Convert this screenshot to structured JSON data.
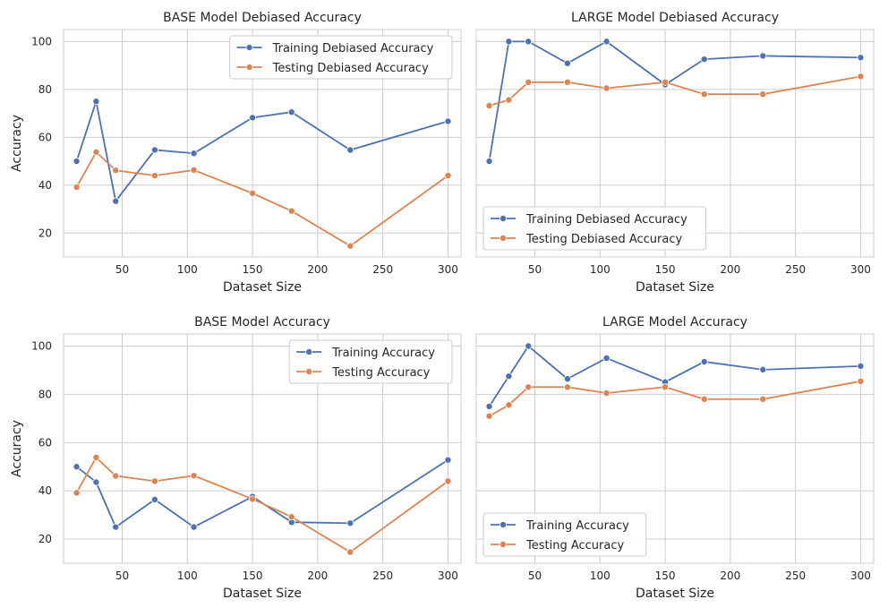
{
  "colors": {
    "training": "#4c72b0",
    "testing": "#dd8452",
    "grid": "#cccccc",
    "spine": "#cccccc",
    "text": "#262626"
  },
  "chart_data": [
    {
      "type": "line",
      "title": "BASE Model Debiased Accuracy",
      "xlabel": "Dataset Size",
      "ylabel": "Accuracy",
      "x": [
        15,
        30,
        45,
        75,
        105,
        150,
        180,
        225,
        300
      ],
      "series": [
        {
          "name": "Training Debiased Accuracy",
          "color": "#4c72b0",
          "values": [
            50,
            75,
            33.3,
            54.7,
            53.3,
            68.2,
            70.5,
            54.7,
            66.7
          ]
        },
        {
          "name": "Testing Debiased Accuracy",
          "color": "#dd8452",
          "values": [
            39.2,
            53.8,
            46.2,
            44.0,
            46.3,
            36.6,
            29.2,
            14.6,
            44.0
          ]
        }
      ],
      "xlim": [
        5,
        310
      ],
      "ylim": [
        10,
        105
      ],
      "xticks": [
        50,
        100,
        150,
        200,
        250,
        300
      ],
      "yticks": [
        20,
        40,
        60,
        80,
        100
      ],
      "legend": "top-right",
      "grid": true
    },
    {
      "type": "line",
      "title": "LARGE Model Debiased Accuracy",
      "xlabel": "Dataset Size",
      "ylabel": "",
      "x": [
        15,
        30,
        45,
        75,
        105,
        150,
        180,
        225,
        300
      ],
      "series": [
        {
          "name": "Training Debiased Accuracy",
          "color": "#4c72b0",
          "values": [
            50,
            100,
            100,
            90.9,
            100,
            82.0,
            92.6,
            94.0,
            93.3
          ]
        },
        {
          "name": "Testing Debiased Accuracy",
          "color": "#dd8452",
          "values": [
            73.2,
            75.6,
            83.0,
            83.0,
            80.5,
            83.0,
            78.0,
            78.0,
            85.4
          ]
        }
      ],
      "xlim": [
        5,
        310
      ],
      "ylim": [
        10,
        105
      ],
      "xticks": [
        50,
        100,
        150,
        200,
        250,
        300
      ],
      "yticks": [
        20,
        40,
        60,
        80,
        100
      ],
      "legend": "bottom-left",
      "grid": true
    },
    {
      "type": "line",
      "title": "BASE Model Accuracy",
      "xlabel": "Dataset Size",
      "ylabel": "Accuracy",
      "x": [
        15,
        30,
        45,
        75,
        105,
        150,
        180,
        225,
        300
      ],
      "series": [
        {
          "name": "Training Accuracy",
          "color": "#4c72b0",
          "values": [
            50,
            43.6,
            25.0,
            36.4,
            25.0,
            37.6,
            27.0,
            26.6,
            52.8
          ]
        },
        {
          "name": "Testing Accuracy",
          "color": "#dd8452",
          "values": [
            39.2,
            53.8,
            46.2,
            44.0,
            46.3,
            36.6,
            29.2,
            14.6,
            44.0
          ]
        }
      ],
      "xlim": [
        5,
        310
      ],
      "ylim": [
        10,
        105
      ],
      "xticks": [
        50,
        100,
        150,
        200,
        250,
        300
      ],
      "yticks": [
        20,
        40,
        60,
        80,
        100
      ],
      "legend": "top-right",
      "grid": true
    },
    {
      "type": "line",
      "title": "LARGE Model Accuracy",
      "xlabel": "Dataset Size",
      "ylabel": "",
      "x": [
        15,
        30,
        45,
        75,
        105,
        150,
        180,
        225,
        300
      ],
      "series": [
        {
          "name": "Training Accuracy",
          "color": "#4c72b0",
          "values": [
            75,
            87.5,
            100,
            86.4,
            95.0,
            85.1,
            93.5,
            90.2,
            91.7
          ]
        },
        {
          "name": "Testing Accuracy",
          "color": "#dd8452",
          "values": [
            71.0,
            75.6,
            83.0,
            83.0,
            80.5,
            83.0,
            78.0,
            78.0,
            85.4
          ]
        }
      ],
      "xlim": [
        5,
        310
      ],
      "ylim": [
        10,
        105
      ],
      "xticks": [
        50,
        100,
        150,
        200,
        250,
        300
      ],
      "yticks": [
        20,
        40,
        60,
        80,
        100
      ],
      "legend": "bottom-left",
      "grid": true
    }
  ]
}
